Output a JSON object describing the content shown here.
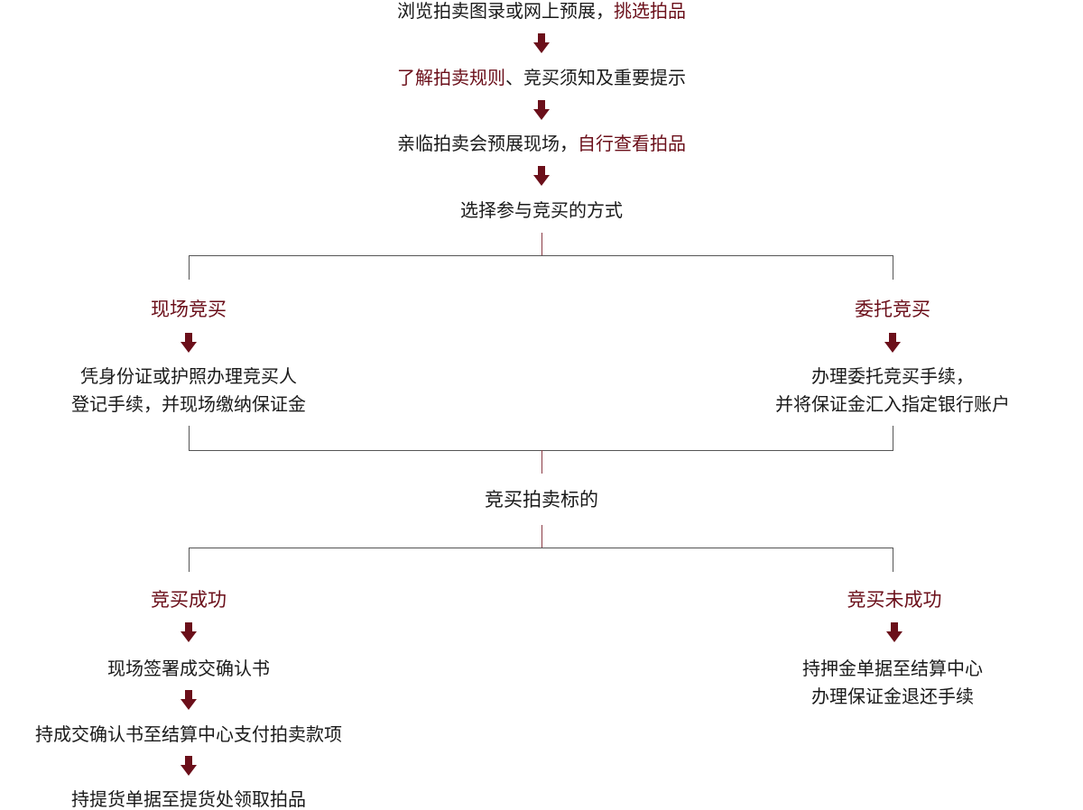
{
  "colors": {
    "highlight": "#6b0f1a",
    "text": "#1a1a1a",
    "arrow": "#6b0f1a"
  },
  "steps": {
    "s1": {
      "a": "浏览拍卖图录或网上预展，",
      "b": "挑选拍品"
    },
    "s2": {
      "a": "了解拍卖规则",
      "b": "、竞买须知及重要提示"
    },
    "s3": {
      "a": "亲临拍卖会预展现场，",
      "b": "自行查看拍品"
    },
    "s4": "选择参与竞买的方式"
  },
  "left_branch": {
    "title": "现场竞买",
    "line1": "凭身份证或护照办理竞买人",
    "line2": "登记手续，并现场缴纳保证金"
  },
  "right_branch": {
    "title": "委托竞买",
    "line1": "办理委托竞买手续，",
    "line2": "并将保证金汇入指定银行账户"
  },
  "merge": "竞买拍卖标的",
  "success": {
    "title": "竞买成功",
    "steps": [
      "现场签署成交确认书",
      "持成交确认书至结算中心支付拍卖款项",
      "持提货单据至提货处领取拍品"
    ]
  },
  "failure": {
    "title": "竞买未成功",
    "line1": "持押金单据至结算中心",
    "line2": "办理保证金退还手续"
  }
}
